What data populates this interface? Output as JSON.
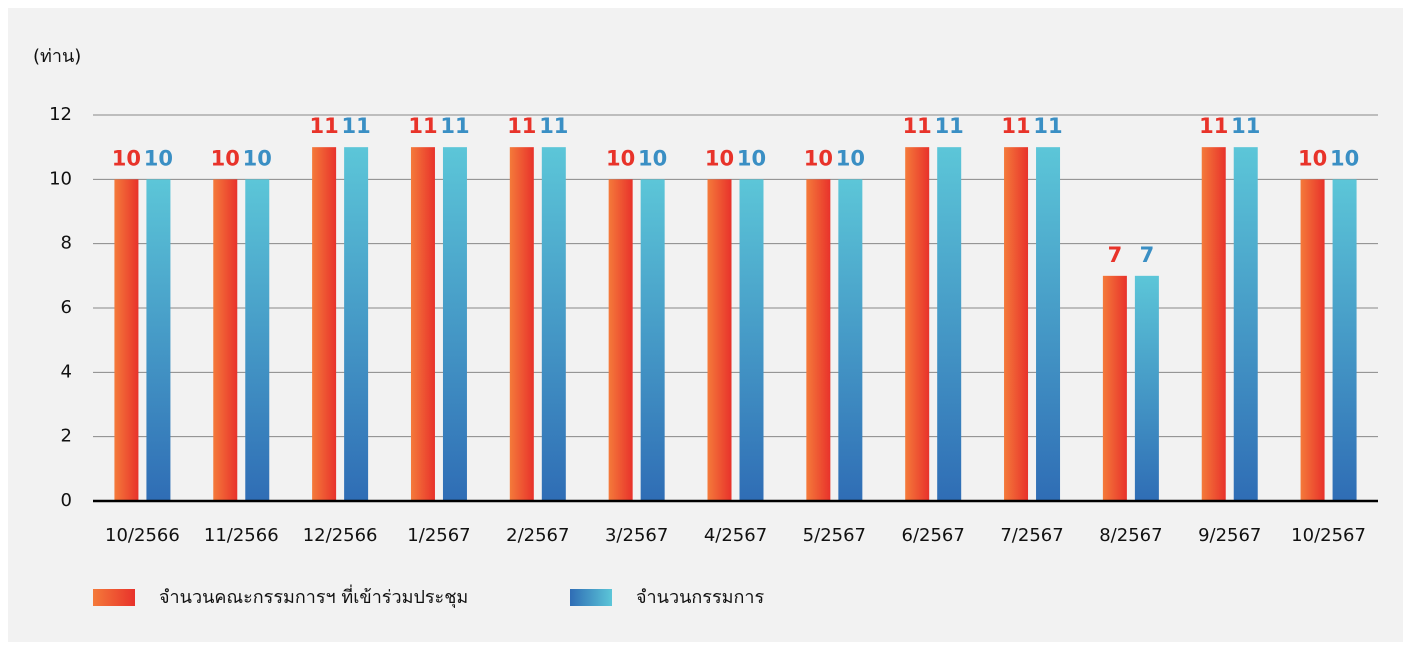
{
  "chart_data": {
    "type": "bar",
    "ylabel": "(ท่าน)",
    "categories": [
      "10/2566",
      "11/2566",
      "12/2566",
      "1/2567",
      "2/2567",
      "3/2567",
      "4/2567",
      "5/2567",
      "6/2567",
      "7/2567",
      "8/2567",
      "9/2567",
      "10/2567"
    ],
    "series": [
      {
        "name": "จำนวนคณะกรรมการฯ ที่เข้าร่วมประชุม",
        "color": "#e8332a",
        "values": [
          10,
          10,
          11,
          11,
          11,
          10,
          10,
          10,
          11,
          11,
          7,
          11,
          10
        ]
      },
      {
        "name": "จำนวนกรรมการ",
        "color": "#3a8fc4",
        "values": [
          10,
          10,
          11,
          11,
          11,
          10,
          10,
          10,
          11,
          11,
          7,
          11,
          10
        ]
      }
    ],
    "ylim": [
      0,
      12
    ],
    "yticks": [
      0,
      2,
      4,
      6,
      8,
      10,
      12
    ],
    "grid": true,
    "legend": "bottom-left"
  }
}
